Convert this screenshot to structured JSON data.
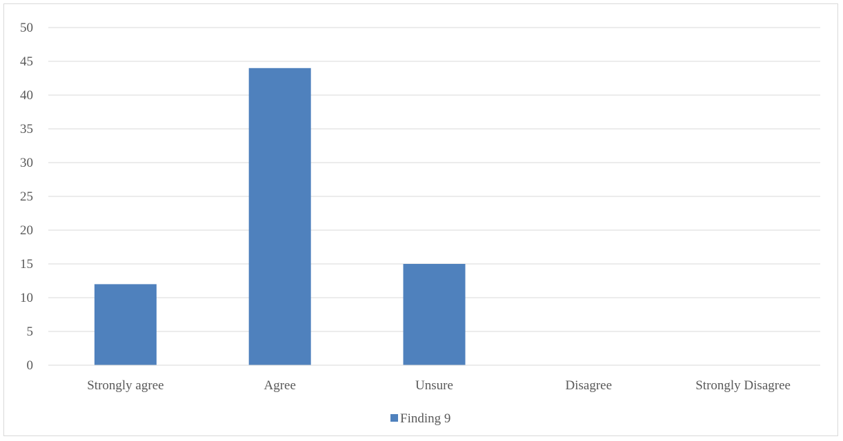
{
  "chart_data": {
    "type": "bar",
    "categories": [
      "Strongly agree",
      "Agree",
      "Unsure",
      "Disagree",
      "Strongly Disagree"
    ],
    "series": [
      {
        "name": "Finding 9",
        "values": [
          12,
          44,
          15,
          0,
          0
        ],
        "color": "#4f81bd"
      }
    ],
    "ylim": [
      0,
      50
    ],
    "yticks": [
      0,
      5,
      10,
      15,
      20,
      25,
      30,
      35,
      40,
      45,
      50
    ],
    "grid": true,
    "legend_position": "bottom"
  }
}
